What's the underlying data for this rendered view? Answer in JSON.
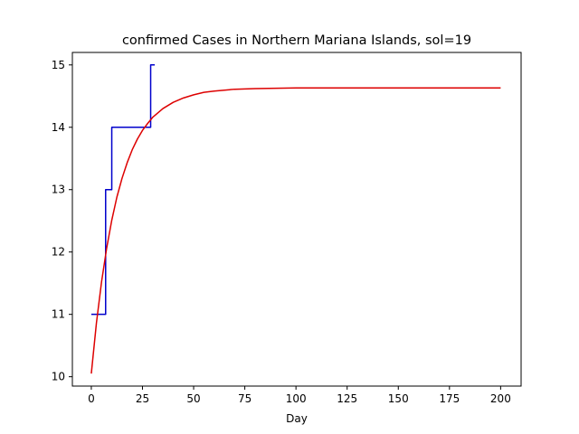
{
  "chart_data": {
    "type": "line",
    "title": "confirmed Cases in Northern Mariana Islands, sol=19",
    "xlabel": "Day",
    "ylabel": "",
    "xlim": [
      -9.25,
      210
    ],
    "ylim": [
      9.85,
      15.2
    ],
    "xticks": [
      0,
      25,
      50,
      75,
      100,
      125,
      150,
      175,
      200
    ],
    "yticks": [
      10,
      11,
      12,
      13,
      14,
      15
    ],
    "grid": false,
    "series": [
      {
        "kind": "step",
        "color": "#0000cc",
        "x": [
          0,
          1,
          2,
          3,
          4,
          5,
          6,
          7,
          8,
          9,
          10,
          11,
          12,
          13,
          14,
          15,
          16,
          17,
          18,
          19,
          20,
          21,
          22,
          23,
          24,
          25,
          26,
          27,
          28,
          29,
          30,
          31
        ],
        "y": [
          11,
          11,
          11,
          11,
          11,
          11,
          11,
          13,
          13,
          13,
          14,
          14,
          14,
          14,
          14,
          14,
          14,
          14,
          14,
          14,
          14,
          14,
          14,
          14,
          14,
          14,
          14,
          14,
          14,
          15,
          15,
          15
        ]
      },
      {
        "kind": "curve",
        "color": "#dd0000",
        "x": [
          0,
          2.5,
          5,
          7.5,
          10,
          12.5,
          15,
          17.5,
          20,
          22.5,
          25,
          27.5,
          30,
          35,
          40,
          45,
          50,
          55,
          60,
          70,
          80,
          100,
          125,
          150,
          175,
          200
        ],
        "y": [
          10.05,
          10.86,
          11.52,
          12.06,
          12.51,
          12.88,
          13.18,
          13.43,
          13.64,
          13.81,
          13.95,
          14.06,
          14.16,
          14.3,
          14.4,
          14.47,
          14.52,
          14.56,
          14.58,
          14.61,
          14.62,
          14.63,
          14.63,
          14.63,
          14.63,
          14.63
        ]
      }
    ]
  }
}
